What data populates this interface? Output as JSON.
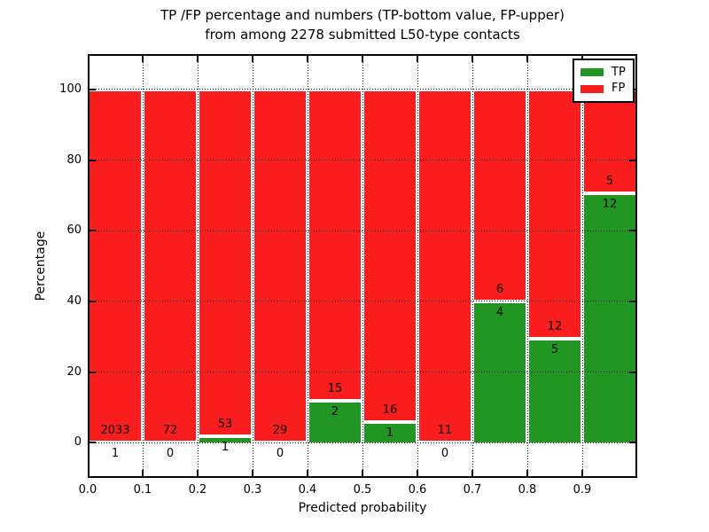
{
  "chart_data": {
    "type": "bar",
    "stacked": true,
    "title_line1": "TP /FP percentage and numbers (TP-bottom value, FP-upper)",
    "title_line2": "from among 2278 submitted L50-type contacts",
    "xlabel": "Predicted probability",
    "ylabel": "Percentage",
    "xlim": [
      0.0,
      1.0
    ],
    "ylim": [
      -10,
      110
    ],
    "x_tick_labels": [
      "0.0",
      "0.1",
      "0.2",
      "0.3",
      "0.4",
      "0.5",
      "0.6",
      "0.7",
      "0.8",
      "0.9"
    ],
    "y_tick_values": [
      0,
      20,
      40,
      60,
      80,
      100
    ],
    "grid_style": "dotted",
    "bin_width": 0.1,
    "bin_starts": [
      0.0,
      0.1,
      0.2,
      0.3,
      0.4,
      0.5,
      0.6,
      0.7,
      0.8,
      0.9
    ],
    "total_contacts": 2278,
    "legend_position": "upper right",
    "series": [
      {
        "name": "TP",
        "color": "#229622",
        "values": [
          1,
          0,
          1,
          0,
          2,
          1,
          0,
          4,
          5,
          12
        ]
      },
      {
        "name": "FP",
        "color": "#f91d1d",
        "values": [
          2033,
          72,
          53,
          29,
          15,
          16,
          11,
          6,
          12,
          5
        ]
      }
    ]
  }
}
